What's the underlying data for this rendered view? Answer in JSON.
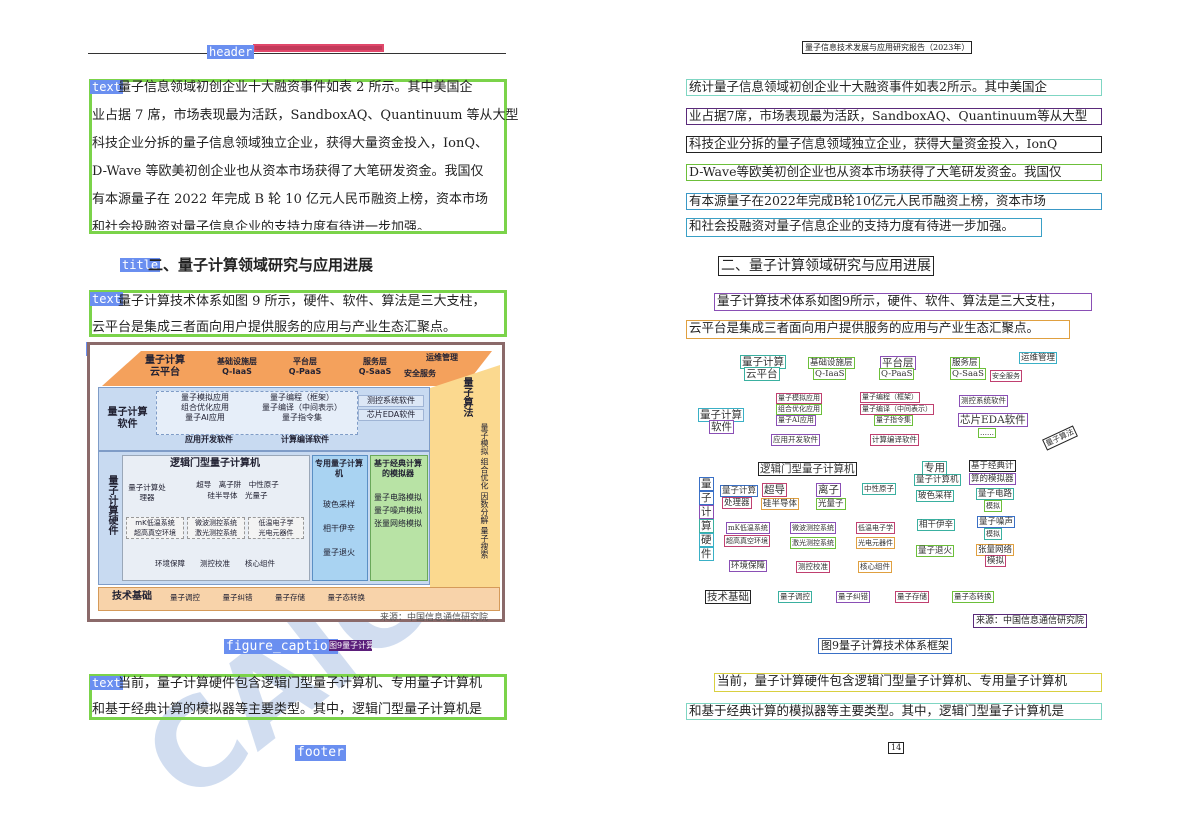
{
  "tags": {
    "header": "header",
    "text": "text",
    "title": "title",
    "figure": "figure",
    "figure_caption": "figure_caption",
    "footer": "footer"
  },
  "left": {
    "header_text": "量子信息技术发展与应用研究报告（2023年）",
    "para1": [
      "量子信息领域初创企业十大融资事件如表 2 所示。其中美国企",
      "业占据 7 席，市场表现最为活跃，SandboxAQ、Quantinuum 等从大型",
      "科技企业分拆的量子信息领域独立企业，获得大量资金投入，IonQ、",
      "D-Wave 等欧美初创企业也从资本市场获得了大笔研发资金。我国仅",
      "有本源量子在 2022 年完成 B 轮 10 亿元人民币融资上榜，资本市场",
      "和社会投融资对量子信息企业的支持力度有待进一步加强。"
    ],
    "title": "二、量子计算领域研究与应用进展",
    "para2": [
      "量子计算技术体系如图 9 所示，硬件、软件、算法是三大支柱，",
      "云平台是集成三者面向用户提供服务的应用与产业生态汇聚点。"
    ],
    "source": "来源：中国信息通信研究院",
    "caption": "图9量子计算技术体系框架",
    "para3": [
      "当前，量子计算硬件包含逻辑门型量子计算机、专用量子计算机",
      "和基于经典计算的模拟器等主要类型。其中，逻辑门型量子计算机是"
    ]
  },
  "right": {
    "header_text": "量子信息技术发展与应用研究报告（2023年）",
    "para1": [
      "统计量子信息领域初创企业十大融资事件如表2所示。其中美国企",
      "业占据7席，市场表现最为活跃，SandboxAQ、Quantinuum等从大型",
      "科技企业分拆的量子信息领域独立企业，获得大量资金投入，IonQ",
      "D-Wave等欧美初创企业也从资本市场获得了大笔研发资金。我国仅",
      "有本源量子在2022年完成B轮10亿元人民币融资上榜，资本市场",
      "和社会投融资对量子信息企业的支持力度有待进一步加强。"
    ],
    "title": "二、量子计算领域研究与应用进展",
    "para2": [
      "量子计算技术体系如图9所示，硬件、软件、算法是三大支柱，",
      "云平台是集成三者面向用户提供服务的应用与产业生态汇聚点。"
    ],
    "source": "来源：中国信息通信研究院",
    "caption": "图9量子计算技术体系框架",
    "para3": [
      "当前，量子计算硬件包含逻辑门型量子计算机、专用量子计算机",
      "和基于经典计算的模拟器等主要类型。其中，逻辑门型量子计算机是"
    ],
    "page_number": "14"
  },
  "diagram": {
    "top": [
      "量子计算",
      "云平台",
      "基础设施层",
      "Q-IaaS",
      "平台层",
      "Q-PaaS",
      "服务层",
      "Q-SaaS",
      "运维管理",
      "安全服务"
    ],
    "software_title": "量子计算\n软件",
    "software_items": [
      "量子模拟应用",
      "组合优化应用",
      "量子AI应用",
      "……",
      "量子编程（框架）",
      "量子编译（中间表示）",
      "量子指令集",
      "……",
      "测控系统软件",
      "芯片EDA软件",
      "……",
      "应用开发软件",
      "计算编译软件"
    ],
    "hardware_title": "量子计算硬件",
    "logic_title": "逻辑门型量子计算机",
    "logic_items": [
      "量子计算处理器",
      "超导",
      "离子阱",
      "中性原子",
      "硅半导体",
      "光量子",
      "……",
      "mK低温系统",
      "超高真空环境",
      "……",
      "微波测控系统",
      "激光测控系统",
      "……",
      "低温电子学",
      "光电元器件",
      "……",
      "环境保障",
      "测控校准",
      "核心组件"
    ],
    "special_title": "专用量子计算机",
    "special_items": [
      "玻色采样",
      "相干伊辛",
      "量子退火",
      "……"
    ],
    "classic_title": "基于经典计算的模拟器",
    "classic_items": [
      "量子电路模拟",
      "量子噪声模拟",
      "张量网络模拟",
      "……"
    ],
    "algo_title": "量子算法",
    "algo_items": [
      "量子模拟",
      "组合优化",
      "因数分解",
      "量子搜索",
      "量子机器学习",
      "量子启发算法",
      "量子纠错理论"
    ],
    "base_title": "技术基础",
    "base_items": [
      "量子调控",
      "量子纠错",
      "量子存储",
      "量子态转换",
      "……"
    ]
  },
  "ocr_boxes": {
    "top": [
      "量子计算",
      "云平台",
      "基础设施层",
      "Q-IaaS",
      "平台层",
      "Q-PaaS",
      "服务层",
      "Q-SaaS",
      "运维管理",
      "安全服务"
    ],
    "software": [
      "量子计算",
      "软件",
      "量子模拟应用",
      "组合优化应用",
      "量子AI应用",
      "量子编程（框架）",
      "量子编译（中间表示）",
      "量子指令集",
      "测控系统软件",
      "芯片EDA软件",
      "……",
      "应用开发软件",
      "计算编译软件",
      "量子算法"
    ],
    "hardware": [
      "逻辑门型量子计算机",
      "专用",
      "量子计算机",
      "基于经典计",
      "算的模拟器",
      "量",
      "子",
      "计",
      "算",
      "硬",
      "件",
      "量子计算",
      "处理器",
      "超导",
      "离子",
      "硅半导体",
      "光量子",
      "中性原子",
      "玻色采样",
      "量子电路",
      "模拟",
      "mK低温系统",
      "超高真空环境",
      "微波测控系统",
      "激光测控系统",
      "低温电子学",
      "光电元器件",
      "相干伊辛",
      "量子噪声",
      "模拟",
      "环境保障",
      "测控校准",
      "核心组件",
      "量子退火",
      "张量网络",
      "模拟"
    ],
    "base": [
      "技术基础",
      "量子调控",
      "量子纠错",
      "量子存储",
      "量子态转换"
    ]
  }
}
